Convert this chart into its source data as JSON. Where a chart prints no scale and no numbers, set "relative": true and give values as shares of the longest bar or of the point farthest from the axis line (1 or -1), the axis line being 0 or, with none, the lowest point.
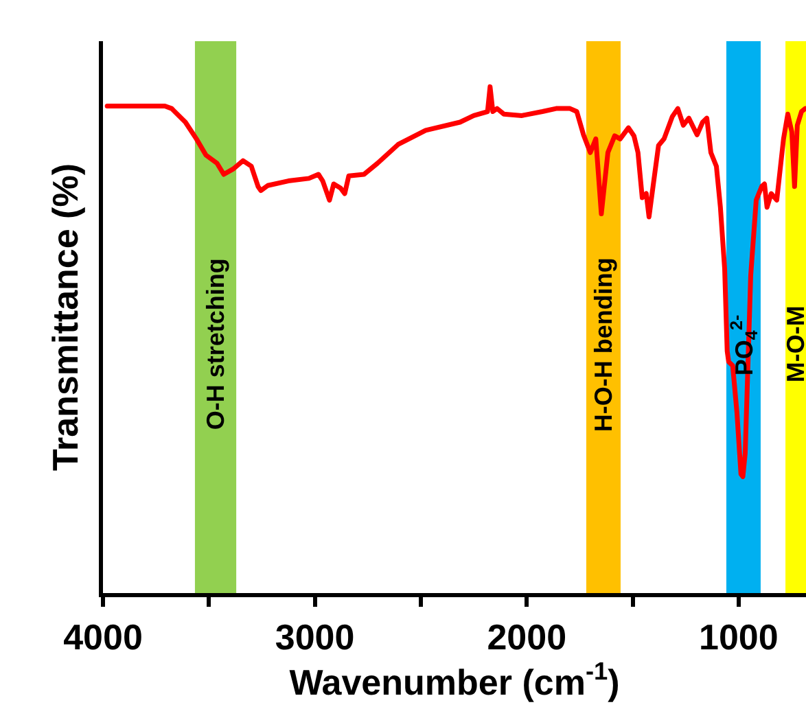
{
  "chart_data": {
    "type": "line",
    "relative": true,
    "xlabel": "Wavenumber (cm$^{-1}$)",
    "ylabel": "Transmittance (%)",
    "xlim": [
      4000,
      682
    ],
    "xticks": [
      4000,
      {
        "value": 3500,
        "label": null
      },
      3000,
      {
        "value": 2500,
        "label": null
      },
      2000,
      {
        "value": 1500,
        "label": null
      },
      1000
    ],
    "grid": false,
    "marker": "none",
    "line_style": "solid",
    "series": [
      {
        "color": "#ff0000",
        "x": [
          3980,
          3708,
          3676,
          3611,
          3559,
          3514,
          3462,
          3430,
          3384,
          3339,
          3300,
          3268,
          3255,
          3222,
          3125,
          3028,
          2983,
          2963,
          2931,
          2911,
          2879,
          2859,
          2840,
          2768,
          2704,
          2607,
          2477,
          2315,
          2250,
          2185,
          2173,
          2160,
          2140,
          2108,
          2023,
          1926,
          1861,
          1796,
          1764,
          1732,
          1700,
          1674,
          1648,
          1617,
          1585,
          1559,
          1520,
          1494,
          1475,
          1455,
          1436,
          1423,
          1404,
          1378,
          1352,
          1313,
          1287,
          1261,
          1235,
          1196,
          1170,
          1150,
          1131,
          1105,
          1086,
          1066,
          1054,
          1047,
          1028,
          1008,
          989,
          980,
          969,
          943,
          917,
          891,
          878,
          866,
          846,
          820,
          788,
          768,
          749,
          736,
          723,
          703,
          685
        ],
        "values": [
          0.962,
          0.962,
          0.957,
          0.93,
          0.897,
          0.865,
          0.849,
          0.827,
          0.838,
          0.854,
          0.843,
          0.803,
          0.795,
          0.805,
          0.814,
          0.819,
          0.827,
          0.814,
          0.776,
          0.808,
          0.8,
          0.789,
          0.824,
          0.827,
          0.849,
          0.886,
          0.914,
          0.93,
          0.943,
          0.951,
          1.0,
          0.951,
          0.957,
          0.946,
          0.943,
          0.951,
          0.957,
          0.957,
          0.951,
          0.905,
          0.87,
          0.897,
          0.749,
          0.87,
          0.903,
          0.897,
          0.919,
          0.903,
          0.87,
          0.781,
          0.789,
          0.743,
          0.803,
          0.884,
          0.897,
          0.941,
          0.957,
          0.924,
          0.938,
          0.905,
          0.93,
          0.938,
          0.87,
          0.843,
          0.762,
          0.641,
          0.478,
          0.457,
          0.449,
          0.357,
          0.235,
          0.23,
          0.276,
          0.627,
          0.776,
          0.803,
          0.808,
          0.762,
          0.789,
          0.776,
          0.897,
          0.946,
          0.911,
          0.803,
          0.924,
          0.951,
          0.957
        ]
      }
    ],
    "bands": [
      {
        "axis": "x",
        "from": 3566,
        "to": 3371,
        "label": "O-H stretching",
        "color": "#92d050"
      },
      {
        "axis": "x",
        "from": 1719,
        "to": 1557,
        "label": "H-O-H bending",
        "color": "#ffc000"
      },
      {
        "axis": "x",
        "from": 1058,
        "to": 896,
        "label": "PO$_{4}$$^{2-}$",
        "color": "#00b0f0"
      },
      {
        "axis": "x",
        "from": 779,
        "to": 682,
        "label": "M-O-M",
        "color": "#ffff00"
      }
    ]
  }
}
